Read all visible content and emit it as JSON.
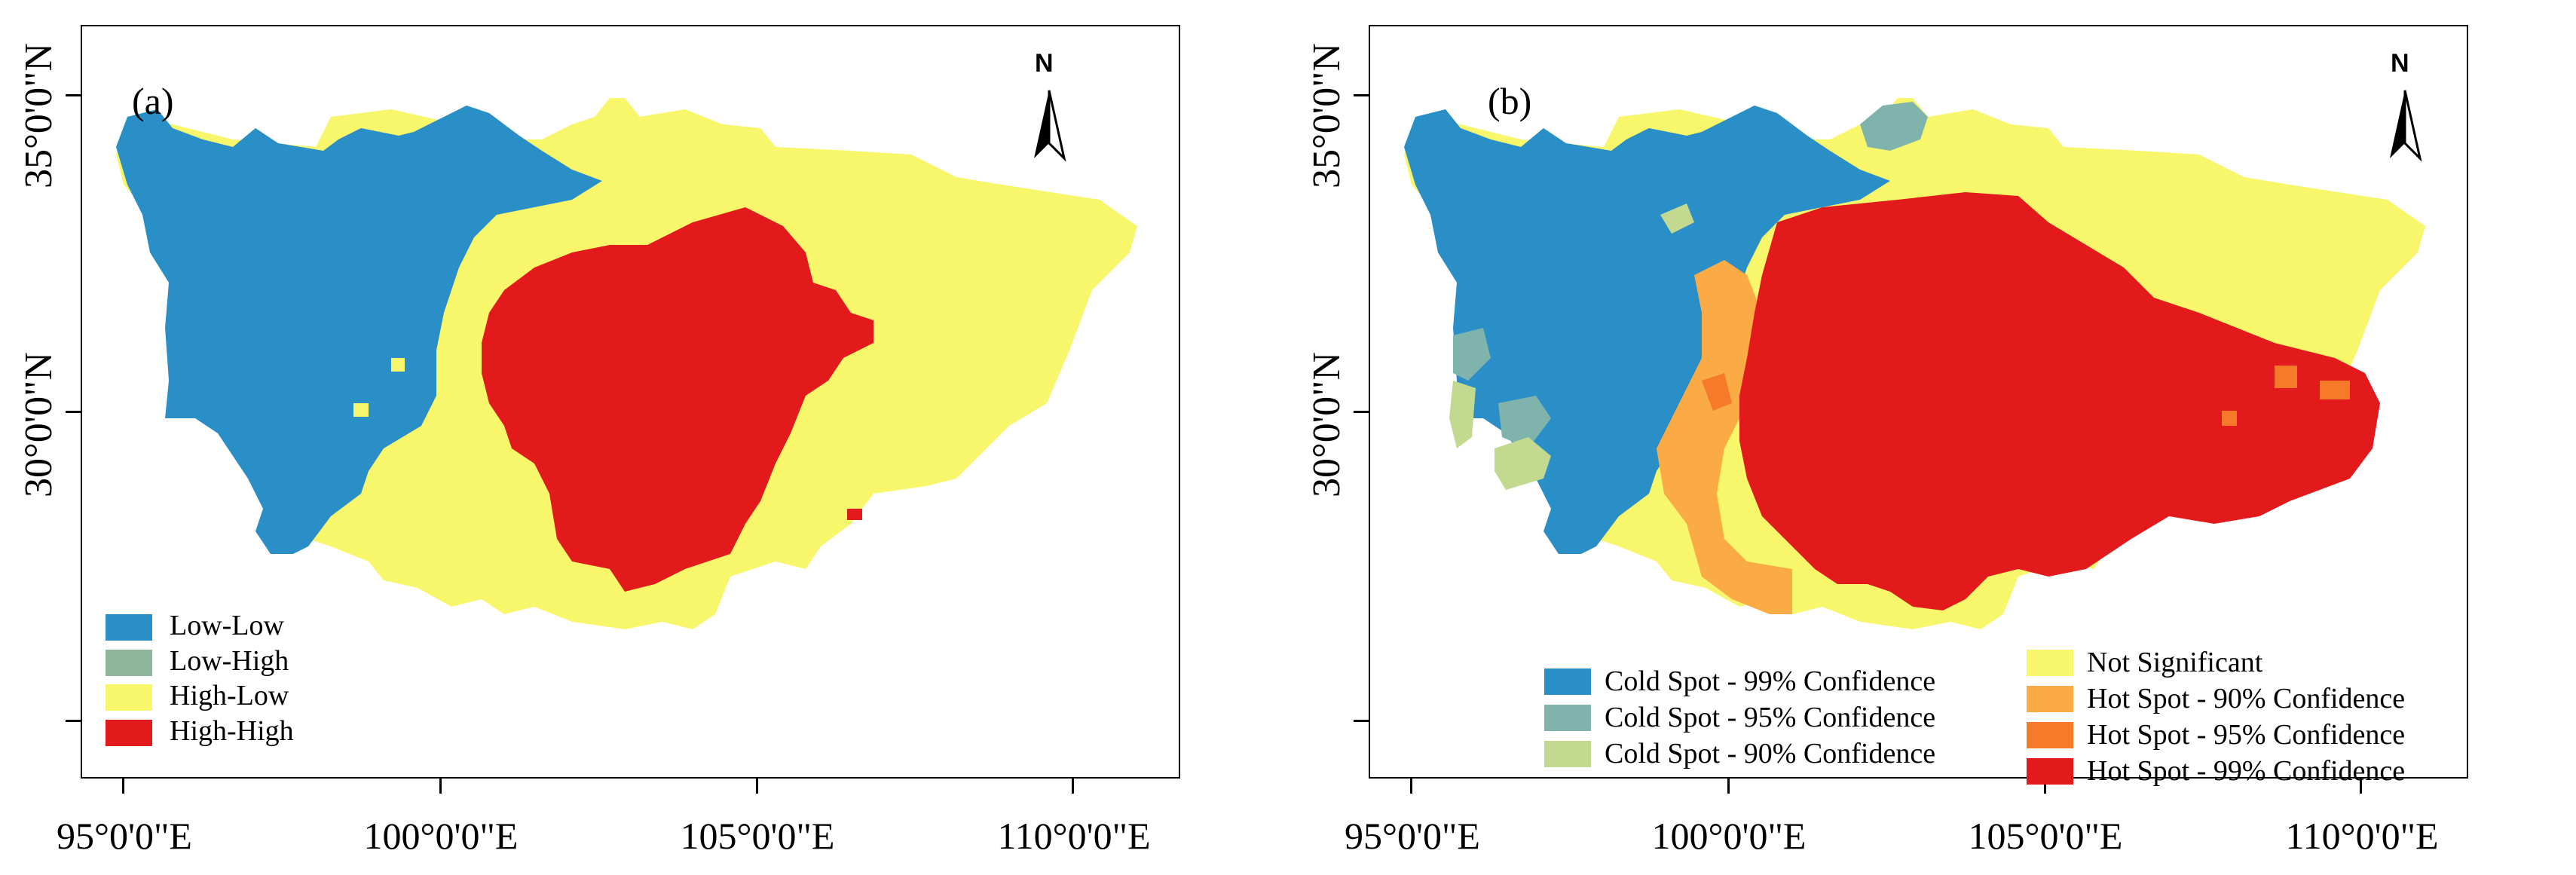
{
  "north_label": "N",
  "axes": {
    "x_ticks": [
      "95°0'0\"E",
      "100°0'0\"E",
      "105°0'0\"E",
      "110°0'0\"E"
    ],
    "y_ticks": [
      "35°0'0\"N",
      "30°0'0\"N"
    ]
  },
  "panel_a": {
    "label": "(a)",
    "legend": [
      {
        "label": "Low-Low",
        "color": "#2b8fc7"
      },
      {
        "label": "Low-High",
        "color": "#8fb59a"
      },
      {
        "label": "High-Low",
        "color": "#f8f76b"
      },
      {
        "label": "High-High",
        "color": "#e31a1c"
      }
    ]
  },
  "panel_b": {
    "label": "(b)",
    "legend_left": [
      {
        "label": "Cold Spot - 99% Confidence",
        "color": "#2b8fc7"
      },
      {
        "label": "Cold Spot - 95% Confidence",
        "color": "#7fb3ac"
      },
      {
        "label": "Cold Spot - 90% Confidence",
        "color": "#c2d98f"
      }
    ],
    "legend_right": [
      {
        "label": "Not Significant",
        "color": "#f8f76b"
      },
      {
        "label": "Hot Spot - 90% Confidence",
        "color": "#fbab46"
      },
      {
        "label": "Hot Spot - 95% Confidence",
        "color": "#f7792a"
      },
      {
        "label": "Hot Spot - 99% Confidence",
        "color": "#e31a1c"
      }
    ]
  }
}
